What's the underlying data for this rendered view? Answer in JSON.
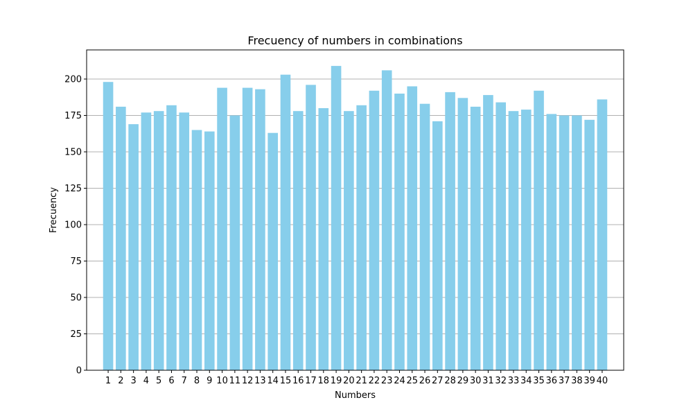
{
  "chart_data": {
    "type": "bar",
    "title": "Frecuency of numbers in combinations",
    "xlabel": "Numbers",
    "ylabel": "Frecuency",
    "categories": [
      "1",
      "2",
      "3",
      "4",
      "5",
      "6",
      "7",
      "8",
      "9",
      "10",
      "11",
      "12",
      "13",
      "14",
      "15",
      "16",
      "17",
      "18",
      "19",
      "20",
      "21",
      "22",
      "23",
      "24",
      "25",
      "26",
      "27",
      "28",
      "29",
      "30",
      "31",
      "32",
      "33",
      "34",
      "35",
      "36",
      "37",
      "38",
      "39",
      "40"
    ],
    "values": [
      198,
      181,
      169,
      177,
      178,
      182,
      177,
      165,
      164,
      194,
      175,
      194,
      193,
      163,
      203,
      178,
      196,
      180,
      209,
      178,
      182,
      192,
      206,
      190,
      195,
      183,
      171,
      191,
      187,
      181,
      189,
      184,
      178,
      179,
      192,
      176,
      175,
      175,
      172,
      186
    ],
    "ylim": [
      0,
      220
    ],
    "yticks": [
      0,
      25,
      50,
      75,
      100,
      125,
      150,
      175,
      200
    ],
    "grid": "y-axis",
    "bar_color": "#87ceeb",
    "grid_color": "#b0b0b0"
  }
}
